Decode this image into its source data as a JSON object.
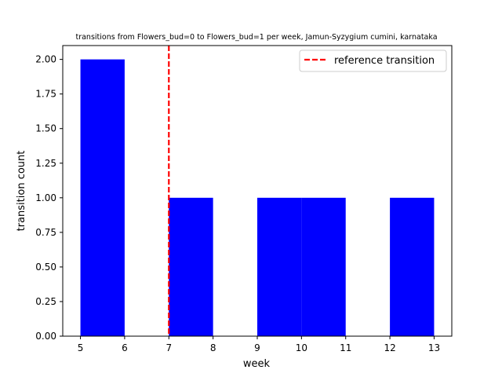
{
  "chart_data": {
    "type": "bar",
    "title": "transitions from Flowers_bud=0 to Flowers_bud=1 per week, Jamun-Syzygium cumini, karnataka",
    "xlabel": "week",
    "ylabel": "transition count",
    "xlim": [
      4.6,
      13.4
    ],
    "ylim": [
      0,
      2.1
    ],
    "x_ticks": [
      5,
      6,
      7,
      8,
      9,
      10,
      11,
      12,
      13
    ],
    "y_ticks": [
      0.0,
      0.25,
      0.5,
      0.75,
      1.0,
      1.25,
      1.5,
      1.75,
      2.0
    ],
    "y_tick_labels": [
      "0.00",
      "0.25",
      "0.50",
      "0.75",
      "1.00",
      "1.25",
      "1.50",
      "1.75",
      "2.00"
    ],
    "bars": [
      {
        "x0": 5,
        "x1": 6,
        "value": 2
      },
      {
        "x0": 7,
        "x1": 8,
        "value": 1
      },
      {
        "x0": 9,
        "x1": 10,
        "value": 1
      },
      {
        "x0": 10,
        "x1": 11,
        "value": 1
      },
      {
        "x0": 12,
        "x1": 13,
        "value": 1
      }
    ],
    "bar_color": "#0000ff",
    "reference_line": {
      "x": 7,
      "label": "reference transition",
      "color": "#ff0000",
      "style": "dashed"
    },
    "legend_position": "top-right",
    "grid": false
  }
}
